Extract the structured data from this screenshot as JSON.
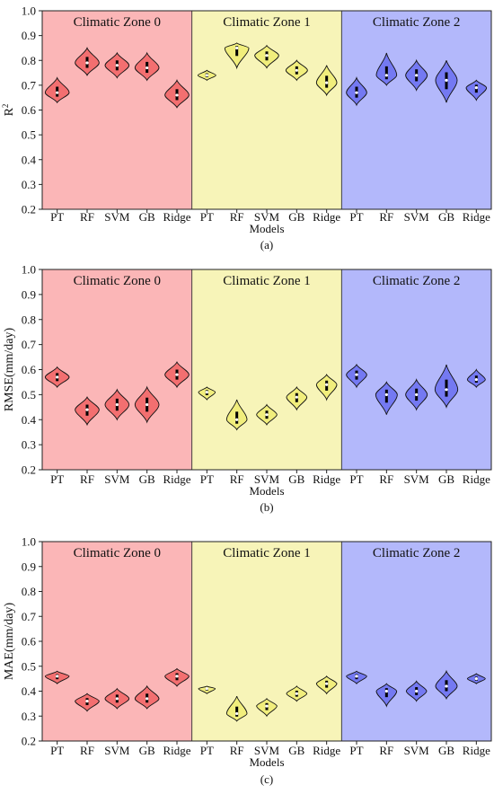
{
  "zone_colors": [
    "#fbb6b7",
    "#f7f4b8",
    "#b3b8fb"
  ],
  "violin_colors": [
    "#f36f70",
    "#f1ee7c",
    "#7479f2"
  ],
  "chart_data": [
    {
      "type": "violin",
      "panel": "(a)",
      "ylabel": "R",
      "ylabel_sup": "2",
      "xlabel": "Models",
      "ylim": [
        0.2,
        1.0
      ],
      "yticks": [
        "0.2",
        "0.3",
        "0.4",
        "0.5",
        "0.6",
        "0.7",
        "0.8",
        "0.9",
        "1.0"
      ],
      "zones": [
        "Climatic Zone 0",
        "Climatic Zone 1",
        "Climatic Zone 2"
      ],
      "models": [
        "PT",
        "RF",
        "SVM",
        "GB",
        "Ridge"
      ],
      "series": [
        {
          "zone": 0,
          "medians": [
            0.67,
            0.79,
            0.78,
            0.77,
            0.66
          ],
          "mins": [
            0.63,
            0.74,
            0.73,
            0.72,
            0.61
          ],
          "maxs": [
            0.73,
            0.85,
            0.83,
            0.83,
            0.72
          ],
          "widths": [
            0.4,
            0.4,
            0.4,
            0.4,
            0.4
          ]
        },
        {
          "zone": 1,
          "medians": [
            0.74,
            0.85,
            0.82,
            0.76,
            0.71
          ],
          "mins": [
            0.72,
            0.77,
            0.77,
            0.72,
            0.66
          ],
          "maxs": [
            0.76,
            0.87,
            0.86,
            0.8,
            0.78
          ],
          "widths": [
            0.3,
            0.4,
            0.4,
            0.36,
            0.34
          ]
        },
        {
          "zone": 2,
          "medians": [
            0.67,
            0.74,
            0.74,
            0.72,
            0.69
          ],
          "mins": [
            0.62,
            0.7,
            0.68,
            0.63,
            0.64
          ],
          "maxs": [
            0.73,
            0.83,
            0.8,
            0.8,
            0.72
          ],
          "widths": [
            0.34,
            0.34,
            0.36,
            0.36,
            0.34
          ]
        }
      ]
    },
    {
      "type": "violin",
      "panel": "(b)",
      "ylabel": "RMSE(mm/day)",
      "ylabel_sup": "",
      "xlabel": "Models",
      "ylim": [
        0.2,
        1.0
      ],
      "yticks": [
        "0.2",
        "0.3",
        "0.4",
        "0.5",
        "0.6",
        "0.7",
        "0.8",
        "0.9",
        "1.0"
      ],
      "zones": [
        "Climatic Zone 0",
        "Climatic Zone 1",
        "Climatic Zone 2"
      ],
      "models": [
        "PT",
        "RF",
        "SVM",
        "GB",
        "Ridge"
      ],
      "series": [
        {
          "zone": 0,
          "medians": [
            0.57,
            0.44,
            0.46,
            0.46,
            0.58
          ],
          "mins": [
            0.53,
            0.38,
            0.4,
            0.39,
            0.53
          ],
          "maxs": [
            0.61,
            0.49,
            0.52,
            0.53,
            0.63
          ],
          "widths": [
            0.4,
            0.4,
            0.4,
            0.4,
            0.4
          ]
        },
        {
          "zone": 1,
          "medians": [
            0.51,
            0.4,
            0.42,
            0.49,
            0.54
          ],
          "mins": [
            0.48,
            0.36,
            0.38,
            0.44,
            0.48
          ],
          "maxs": [
            0.53,
            0.48,
            0.46,
            0.53,
            0.58
          ],
          "widths": [
            0.28,
            0.34,
            0.34,
            0.34,
            0.34
          ]
        },
        {
          "zone": 2,
          "medians": [
            0.58,
            0.5,
            0.5,
            0.52,
            0.56
          ],
          "mins": [
            0.53,
            0.42,
            0.44,
            0.45,
            0.53
          ],
          "maxs": [
            0.62,
            0.55,
            0.56,
            0.62,
            0.6
          ],
          "widths": [
            0.34,
            0.36,
            0.36,
            0.38,
            0.3
          ]
        }
      ]
    },
    {
      "type": "violin",
      "panel": "(c)",
      "ylabel": "MAE(mm/day)",
      "ylabel_sup": "",
      "xlabel": "Models",
      "ylim": [
        0.2,
        1.0
      ],
      "yticks": [
        "0.2",
        "0.3",
        "0.4",
        "0.5",
        "0.6",
        "0.7",
        "0.8",
        "0.9",
        "1.0"
      ],
      "zones": [
        "Climatic Zone 0",
        "Climatic Zone 1",
        "Climatic Zone 2"
      ],
      "models": [
        "PT",
        "RF",
        "SVM",
        "GB",
        "Ridge"
      ],
      "series": [
        {
          "zone": 0,
          "medians": [
            0.46,
            0.36,
            0.37,
            0.37,
            0.46
          ],
          "mins": [
            0.43,
            0.32,
            0.33,
            0.33,
            0.42
          ],
          "maxs": [
            0.48,
            0.39,
            0.41,
            0.42,
            0.49
          ],
          "widths": [
            0.4,
            0.4,
            0.4,
            0.4,
            0.4
          ]
        },
        {
          "zone": 1,
          "medians": [
            0.41,
            0.31,
            0.34,
            0.39,
            0.43
          ],
          "mins": [
            0.39,
            0.28,
            0.3,
            0.36,
            0.39
          ],
          "maxs": [
            0.42,
            0.38,
            0.37,
            0.42,
            0.46
          ],
          "widths": [
            0.28,
            0.34,
            0.34,
            0.34,
            0.34
          ]
        },
        {
          "zone": 2,
          "medians": [
            0.46,
            0.4,
            0.4,
            0.42,
            0.45
          ],
          "mins": [
            0.43,
            0.34,
            0.36,
            0.37,
            0.43
          ],
          "maxs": [
            0.48,
            0.43,
            0.44,
            0.48,
            0.47
          ],
          "widths": [
            0.34,
            0.34,
            0.34,
            0.36,
            0.3
          ]
        }
      ]
    }
  ]
}
